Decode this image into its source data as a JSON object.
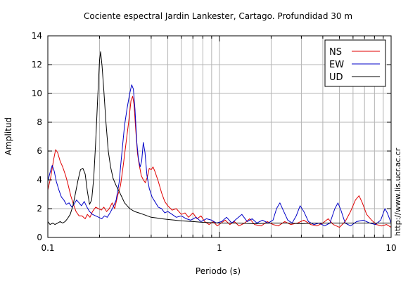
{
  "chart_data": {
    "type": "line",
    "title": "Cociente espectral Jardin Lankester, Cartago. Profundidad 30 m",
    "xlabel": "Periodo (s)",
    "ylabel": "Amplitud",
    "x_scale": "log",
    "xlim": [
      0.1,
      10
    ],
    "ylim": [
      0,
      14
    ],
    "x_ticks": [
      0.1,
      1,
      10
    ],
    "x_tick_labels": [
      "0.1",
      "1",
      "10"
    ],
    "y_ticks": [
      0,
      2,
      4,
      6,
      8,
      10,
      12,
      14
    ],
    "y_tick_labels": [
      "0",
      "2",
      "4",
      "6",
      "8",
      "10",
      "12",
      "14"
    ],
    "grid": true,
    "legend_position": "top-right",
    "side_text": "http://www.lis.ucr.ac.cr",
    "series": [
      {
        "name": "NS",
        "color": "#e00000",
        "points": [
          [
            0.1,
            3.3
          ],
          [
            0.104,
            4.2
          ],
          [
            0.108,
            5.4
          ],
          [
            0.111,
            6.1
          ],
          [
            0.114,
            5.9
          ],
          [
            0.118,
            5.3
          ],
          [
            0.122,
            4.9
          ],
          [
            0.127,
            4.3
          ],
          [
            0.131,
            3.7
          ],
          [
            0.136,
            2.9
          ],
          [
            0.141,
            2.3
          ],
          [
            0.146,
            1.8
          ],
          [
            0.152,
            1.5
          ],
          [
            0.158,
            1.5
          ],
          [
            0.165,
            1.3
          ],
          [
            0.17,
            1.6
          ],
          [
            0.176,
            1.4
          ],
          [
            0.182,
            1.8
          ],
          [
            0.19,
            2.1
          ],
          [
            0.197,
            2.0
          ],
          [
            0.205,
            1.9
          ],
          [
            0.212,
            2.1
          ],
          [
            0.22,
            1.8
          ],
          [
            0.228,
            2.0
          ],
          [
            0.237,
            2.4
          ],
          [
            0.245,
            2.0
          ],
          [
            0.255,
            2.9
          ],
          [
            0.265,
            3.6
          ],
          [
            0.275,
            5.0
          ],
          [
            0.285,
            6.5
          ],
          [
            0.295,
            7.9
          ],
          [
            0.305,
            9.5
          ],
          [
            0.312,
            9.8
          ],
          [
            0.318,
            9.2
          ],
          [
            0.325,
            7.5
          ],
          [
            0.333,
            5.8
          ],
          [
            0.34,
            5.1
          ],
          [
            0.35,
            4.3
          ],
          [
            0.36,
            4.0
          ],
          [
            0.37,
            3.8
          ],
          [
            0.38,
            4.2
          ],
          [
            0.39,
            4.8
          ],
          [
            0.4,
            4.7
          ],
          [
            0.41,
            4.9
          ],
          [
            0.42,
            4.6
          ],
          [
            0.44,
            3.9
          ],
          [
            0.46,
            3.1
          ],
          [
            0.48,
            2.5
          ],
          [
            0.5,
            2.2
          ],
          [
            0.53,
            1.9
          ],
          [
            0.56,
            2.0
          ],
          [
            0.6,
            1.6
          ],
          [
            0.63,
            1.7
          ],
          [
            0.66,
            1.4
          ],
          [
            0.7,
            1.7
          ],
          [
            0.74,
            1.3
          ],
          [
            0.78,
            1.5
          ],
          [
            0.82,
            1.1
          ],
          [
            0.87,
            0.9
          ],
          [
            0.92,
            1.1
          ],
          [
            0.97,
            0.8
          ],
          [
            1.02,
            1.0
          ],
          [
            1.08,
            1.2
          ],
          [
            1.15,
            0.9
          ],
          [
            1.22,
            1.1
          ],
          [
            1.3,
            0.8
          ],
          [
            1.4,
            1.0
          ],
          [
            1.5,
            1.3
          ],
          [
            1.6,
            0.9
          ],
          [
            1.75,
            0.8
          ],
          [
            1.9,
            1.1
          ],
          [
            2.05,
            0.9
          ],
          [
            2.2,
            0.8
          ],
          [
            2.4,
            1.1
          ],
          [
            2.6,
            0.9
          ],
          [
            2.85,
            1.0
          ],
          [
            3.1,
            1.2
          ],
          [
            3.4,
            0.9
          ],
          [
            3.7,
            0.8
          ],
          [
            4.0,
            1.0
          ],
          [
            4.3,
            1.3
          ],
          [
            4.6,
            0.9
          ],
          [
            5.0,
            0.7
          ],
          [
            5.4,
            1.1
          ],
          [
            5.8,
            1.8
          ],
          [
            6.2,
            2.6
          ],
          [
            6.5,
            2.9
          ],
          [
            6.8,
            2.4
          ],
          [
            7.2,
            1.6
          ],
          [
            7.7,
            1.2
          ],
          [
            8.2,
            0.9
          ],
          [
            8.8,
            0.8
          ],
          [
            9.4,
            0.9
          ],
          [
            10.0,
            0.7
          ]
        ]
      },
      {
        "name": "EW",
        "color": "#0000c8",
        "points": [
          [
            0.1,
            3.9
          ],
          [
            0.103,
            4.5
          ],
          [
            0.106,
            5.0
          ],
          [
            0.109,
            4.6
          ],
          [
            0.112,
            3.9
          ],
          [
            0.116,
            3.3
          ],
          [
            0.12,
            2.8
          ],
          [
            0.124,
            2.6
          ],
          [
            0.128,
            2.3
          ],
          [
            0.133,
            2.4
          ],
          [
            0.138,
            2.1
          ],
          [
            0.142,
            2.3
          ],
          [
            0.147,
            2.6
          ],
          [
            0.152,
            2.4
          ],
          [
            0.157,
            2.2
          ],
          [
            0.163,
            2.5
          ],
          [
            0.169,
            2.1
          ],
          [
            0.175,
            1.8
          ],
          [
            0.182,
            1.6
          ],
          [
            0.19,
            1.5
          ],
          [
            0.198,
            1.4
          ],
          [
            0.206,
            1.3
          ],
          [
            0.214,
            1.5
          ],
          [
            0.222,
            1.4
          ],
          [
            0.23,
            1.7
          ],
          [
            0.24,
            2.1
          ],
          [
            0.25,
            2.6
          ],
          [
            0.26,
            3.8
          ],
          [
            0.27,
            5.9
          ],
          [
            0.28,
            7.8
          ],
          [
            0.29,
            9.0
          ],
          [
            0.3,
            10.0
          ],
          [
            0.308,
            10.6
          ],
          [
            0.315,
            10.3
          ],
          [
            0.322,
            8.9
          ],
          [
            0.33,
            6.6
          ],
          [
            0.337,
            5.5
          ],
          [
            0.345,
            4.9
          ],
          [
            0.352,
            5.3
          ],
          [
            0.36,
            6.6
          ],
          [
            0.368,
            5.9
          ],
          [
            0.378,
            4.3
          ],
          [
            0.39,
            3.4
          ],
          [
            0.405,
            2.8
          ],
          [
            0.42,
            2.5
          ],
          [
            0.44,
            2.1
          ],
          [
            0.46,
            2.0
          ],
          [
            0.48,
            1.7
          ],
          [
            0.5,
            1.8
          ],
          [
            0.53,
            1.6
          ],
          [
            0.56,
            1.4
          ],
          [
            0.6,
            1.5
          ],
          [
            0.64,
            1.3
          ],
          [
            0.68,
            1.2
          ],
          [
            0.73,
            1.4
          ],
          [
            0.78,
            1.1
          ],
          [
            0.84,
            1.3
          ],
          [
            0.9,
            1.2
          ],
          [
            0.96,
            1.0
          ],
          [
            1.03,
            1.1
          ],
          [
            1.1,
            1.4
          ],
          [
            1.18,
            1.0
          ],
          [
            1.26,
            1.3
          ],
          [
            1.35,
            1.6
          ],
          [
            1.45,
            1.1
          ],
          [
            1.55,
            1.3
          ],
          [
            1.65,
            1.0
          ],
          [
            1.78,
            1.2
          ],
          [
            1.92,
            1.0
          ],
          [
            2.05,
            1.2
          ],
          [
            2.15,
            2.0
          ],
          [
            2.25,
            2.4
          ],
          [
            2.35,
            1.9
          ],
          [
            2.5,
            1.2
          ],
          [
            2.65,
            1.0
          ],
          [
            2.8,
            1.5
          ],
          [
            2.95,
            2.2
          ],
          [
            3.1,
            1.8
          ],
          [
            3.3,
            1.1
          ],
          [
            3.55,
            0.9
          ],
          [
            3.8,
            1.0
          ],
          [
            4.1,
            0.8
          ],
          [
            4.4,
            1.0
          ],
          [
            4.7,
            2.0
          ],
          [
            4.9,
            2.4
          ],
          [
            5.1,
            1.9
          ],
          [
            5.4,
            1.0
          ],
          [
            5.8,
            0.8
          ],
          [
            6.3,
            1.1
          ],
          [
            6.9,
            1.2
          ],
          [
            7.5,
            1.0
          ],
          [
            8.1,
            0.9
          ],
          [
            8.7,
            1.2
          ],
          [
            9.2,
            2.0
          ],
          [
            9.5,
            1.7
          ],
          [
            10.0,
            1.0
          ]
        ]
      },
      {
        "name": "UD",
        "color": "#000000",
        "points": [
          [
            0.1,
            1.1
          ],
          [
            0.103,
            0.9
          ],
          [
            0.107,
            1.0
          ],
          [
            0.11,
            0.9
          ],
          [
            0.114,
            1.0
          ],
          [
            0.118,
            1.1
          ],
          [
            0.122,
            1.0
          ],
          [
            0.126,
            1.1
          ],
          [
            0.13,
            1.3
          ],
          [
            0.135,
            1.6
          ],
          [
            0.14,
            2.2
          ],
          [
            0.145,
            3.1
          ],
          [
            0.15,
            4.0
          ],
          [
            0.155,
            4.7
          ],
          [
            0.16,
            4.8
          ],
          [
            0.165,
            4.4
          ],
          [
            0.17,
            3.2
          ],
          [
            0.175,
            2.3
          ],
          [
            0.18,
            2.6
          ],
          [
            0.185,
            4.1
          ],
          [
            0.19,
            6.6
          ],
          [
            0.195,
            9.6
          ],
          [
            0.2,
            12.3
          ],
          [
            0.203,
            12.9
          ],
          [
            0.207,
            11.9
          ],
          [
            0.212,
            10.2
          ],
          [
            0.218,
            8.0
          ],
          [
            0.225,
            6.0
          ],
          [
            0.232,
            4.9
          ],
          [
            0.24,
            4.1
          ],
          [
            0.25,
            3.6
          ],
          [
            0.26,
            3.2
          ],
          [
            0.27,
            2.8
          ],
          [
            0.28,
            2.4
          ],
          [
            0.29,
            2.2
          ],
          [
            0.3,
            2.0
          ],
          [
            0.32,
            1.8
          ],
          [
            0.34,
            1.7
          ],
          [
            0.36,
            1.6
          ],
          [
            0.38,
            1.5
          ],
          [
            0.4,
            1.4
          ],
          [
            0.43,
            1.35
          ],
          [
            0.46,
            1.3
          ],
          [
            0.5,
            1.25
          ],
          [
            0.55,
            1.2
          ],
          [
            0.6,
            1.15
          ],
          [
            0.7,
            1.1
          ],
          [
            0.8,
            1.05
          ],
          [
            1.0,
            1.0
          ],
          [
            1.3,
            1.0
          ],
          [
            1.6,
            0.95
          ],
          [
            2.0,
            1.0
          ],
          [
            2.5,
            1.0
          ],
          [
            3.0,
            0.95
          ],
          [
            3.5,
            1.0
          ],
          [
            4.0,
            1.0
          ],
          [
            5.0,
            1.0
          ],
          [
            6.0,
            1.0
          ],
          [
            7.0,
            1.0
          ],
          [
            8.0,
            1.0
          ],
          [
            9.0,
            1.0
          ],
          [
            10.0,
            1.0
          ]
        ]
      }
    ]
  }
}
